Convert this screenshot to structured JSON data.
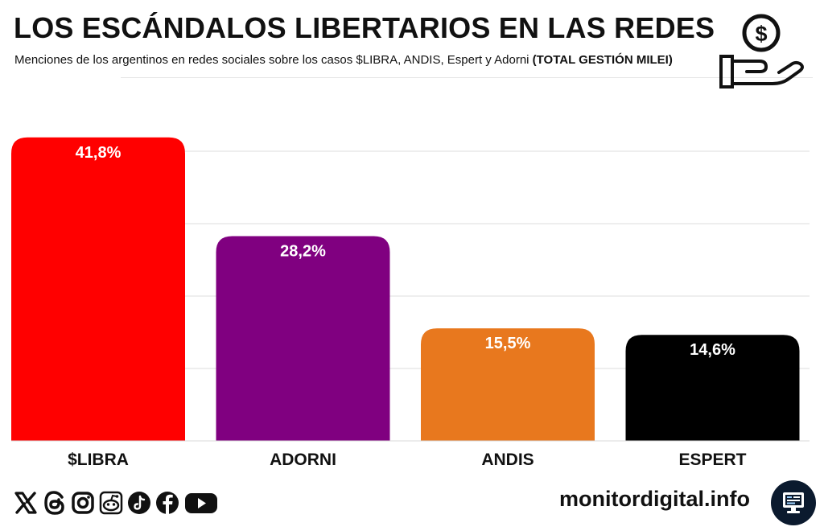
{
  "header": {
    "title": "LOS ESCÁNDALOS LIBERTARIOS EN LAS REDES",
    "subtitle": "Menciones de los argentinos en redes sociales sobre los casos $LIBRA, ANDIS, Espert y Adorni",
    "subtitle_bold": "(TOTAL GESTIÓN MILEI)",
    "icon": "hand-with-dollar-coin-icon"
  },
  "chart_data": {
    "type": "bar",
    "title": "LOS ESCÁNDALOS LIBERTARIOS EN LAS REDES",
    "categories": [
      "$LIBRA",
      "ADORNI",
      "ANDIS",
      "ESPERT"
    ],
    "values": [
      41.8,
      28.2,
      15.5,
      14.6
    ],
    "value_labels": [
      "41,8%",
      "28,2%",
      "15,5%",
      "14,6%"
    ],
    "colors": [
      "#ff0000",
      "#800080",
      "#e8781e",
      "#000000"
    ],
    "xlabel": "",
    "ylabel": "",
    "ylim": [
      0,
      40
    ],
    "grid": true,
    "unit": "%"
  },
  "footer": {
    "social_icons": [
      "x-icon",
      "threads-icon",
      "instagram-icon",
      "reddit-icon",
      "tiktok-icon",
      "facebook-icon",
      "youtube-icon"
    ],
    "brand": "monitordigital.info",
    "logo_icon": "monitor-computer-icon"
  }
}
